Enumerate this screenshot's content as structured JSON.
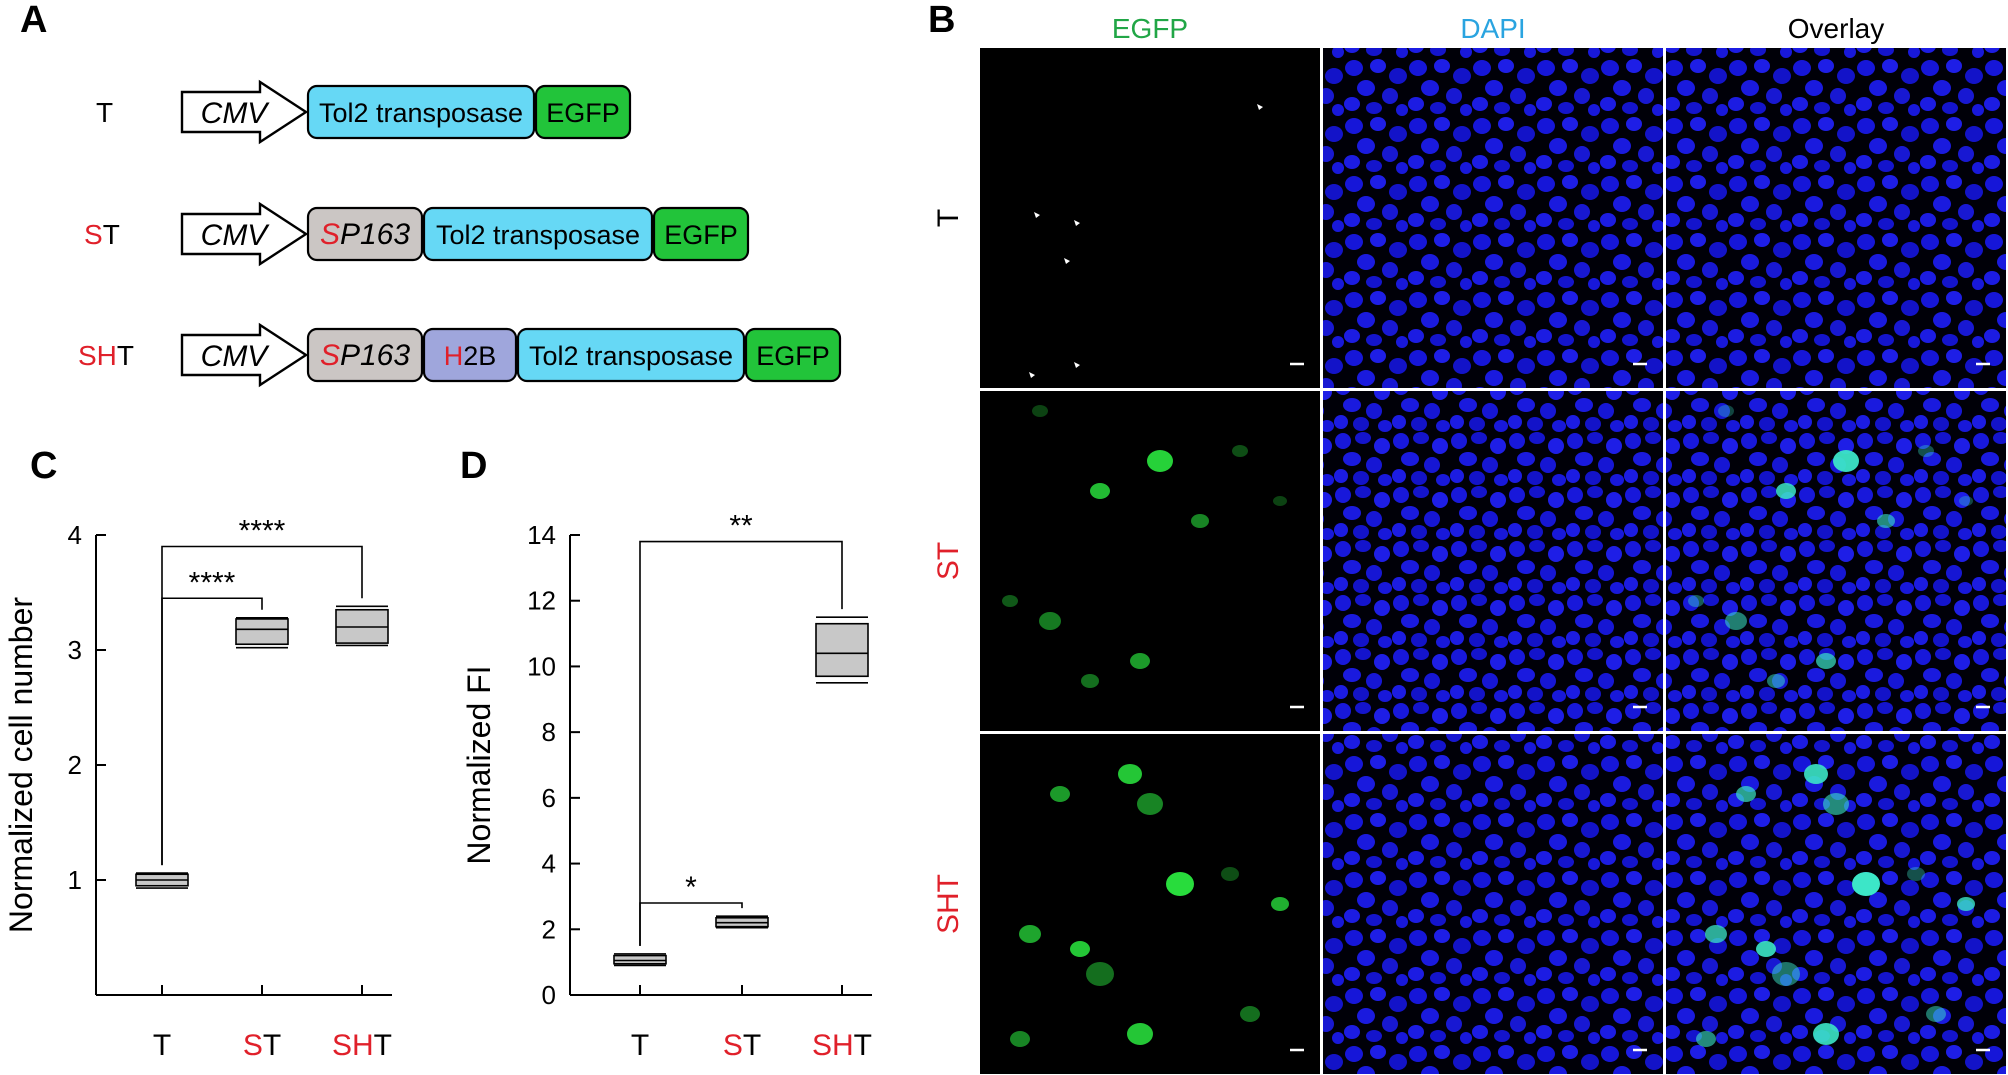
{
  "colors": {
    "red": "#e0202a",
    "cyan": "#66d8f5",
    "green": "#22c43a",
    "grey": "#cbc6c4",
    "purple": "#9fa6dc",
    "egfp_title": "#21a646",
    "dapi_title": "#2aa4e0",
    "box_fill": "#c8c8c8"
  },
  "panel_a": {
    "letter": "A",
    "rows": [
      {
        "label": [
          {
            "t": "T",
            "red": false
          }
        ],
        "cmv": "CMV",
        "segments": [
          {
            "kind": "tol2",
            "text": [
              {
                "t": "Tol2 transposase",
                "red": false
              }
            ]
          },
          {
            "kind": "egfp",
            "text": [
              {
                "t": "EGFP",
                "red": false
              }
            ]
          }
        ]
      },
      {
        "label": [
          {
            "t": "S",
            "red": true
          },
          {
            "t": "T",
            "red": false
          }
        ],
        "cmv": "CMV",
        "segments": [
          {
            "kind": "sp163",
            "text": [
              {
                "t": "S",
                "red": true,
                "italic": true
              },
              {
                "t": "P163",
                "red": false,
                "italic": true
              }
            ]
          },
          {
            "kind": "tol2",
            "text": [
              {
                "t": "Tol2 transposase",
                "red": false
              }
            ]
          },
          {
            "kind": "egfp",
            "text": [
              {
                "t": "EGFP",
                "red": false
              }
            ]
          }
        ]
      },
      {
        "label": [
          {
            "t": "SH",
            "red": true
          },
          {
            "t": "T",
            "red": false
          }
        ],
        "cmv": "CMV",
        "segments": [
          {
            "kind": "sp163",
            "text": [
              {
                "t": "S",
                "red": true,
                "italic": true
              },
              {
                "t": "P163",
                "red": false,
                "italic": true
              }
            ]
          },
          {
            "kind": "h2b",
            "text": [
              {
                "t": "H",
                "red": true
              },
              {
                "t": "2B",
                "red": false
              }
            ]
          },
          {
            "kind": "tol2",
            "text": [
              {
                "t": "Tol2 transposase",
                "red": false
              }
            ]
          },
          {
            "kind": "egfp",
            "text": [
              {
                "t": "EGFP",
                "red": false
              }
            ]
          }
        ]
      }
    ]
  },
  "chart_data": [
    {
      "type": "box",
      "panel": "C",
      "ylabel": "Normalized cell number",
      "ylim": [
        0,
        4
      ],
      "yticks": [
        1,
        2,
        3,
        4
      ],
      "categories": [
        [
          {
            "t": "T",
            "red": false
          }
        ],
        [
          {
            "t": "S",
            "red": true
          },
          {
            "t": "T",
            "red": false
          }
        ],
        [
          {
            "t": "SH",
            "red": true
          },
          {
            "t": "T",
            "red": false
          }
        ]
      ],
      "boxes": [
        {
          "min": 0.93,
          "q1": 0.95,
          "median": 1.0,
          "q3": 1.05,
          "max": 1.06
        },
        {
          "min": 3.02,
          "q1": 3.05,
          "median": 3.18,
          "q3": 3.27,
          "max": 3.28
        },
        {
          "min": 3.04,
          "q1": 3.06,
          "median": 3.2,
          "q3": 3.35,
          "max": 3.38
        }
      ],
      "significance": [
        {
          "from": 0,
          "to": 1,
          "label": "****",
          "level": 3.45
        },
        {
          "from": 0,
          "to": 2,
          "label": "****",
          "level": 3.9
        }
      ]
    },
    {
      "type": "box",
      "panel": "D",
      "ylabel": "Normalized FI",
      "ylim": [
        0,
        14
      ],
      "yticks": [
        0,
        2,
        4,
        6,
        8,
        10,
        12,
        14
      ],
      "categories": [
        [
          {
            "t": "T",
            "red": false
          }
        ],
        [
          {
            "t": "S",
            "red": true
          },
          {
            "t": "T",
            "red": false
          }
        ],
        [
          {
            "t": "SH",
            "red": true
          },
          {
            "t": "T",
            "red": false
          }
        ]
      ],
      "boxes": [
        {
          "min": 0.9,
          "q1": 0.95,
          "median": 1.05,
          "q3": 1.2,
          "max": 1.25
        },
        {
          "min": 2.05,
          "q1": 2.08,
          "median": 2.2,
          "q3": 2.35,
          "max": 2.4
        },
        {
          "min": 9.5,
          "q1": 9.7,
          "median": 10.4,
          "q3": 11.3,
          "max": 11.5
        }
      ],
      "significance": [
        {
          "from": 0,
          "to": 1,
          "label": "*",
          "level": 2.8
        },
        {
          "from": 0,
          "to": 2,
          "label": "**",
          "level": 13.8
        }
      ]
    }
  ],
  "panel_c": {
    "letter": "C"
  },
  "panel_d": {
    "letter": "D"
  },
  "panel_b": {
    "letter": "B",
    "columns": [
      "EGFP",
      "DAPI",
      "Overlay"
    ],
    "rows": [
      [
        {
          "t": "T",
          "red": false
        }
      ],
      [
        {
          "t": "ST",
          "red": true
        }
      ],
      [
        {
          "t": "SHT",
          "red": true
        }
      ]
    ]
  }
}
